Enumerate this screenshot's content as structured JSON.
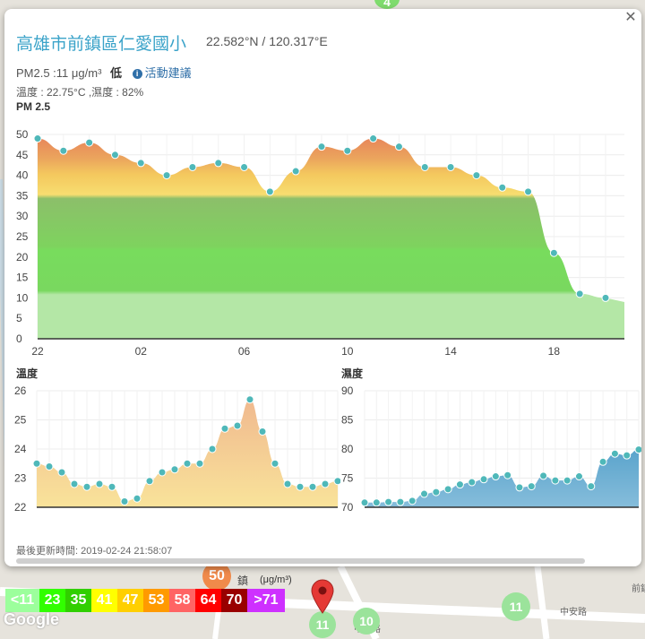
{
  "station": {
    "name": "高雄市前鎮區仁愛國小",
    "coords": "22.582°N / 120.317°E",
    "pm25_text": "PM2.5 :11 μg/m³",
    "level": "低",
    "advice_label": "活動建議",
    "weather_text": "溫度 : 22.75°C ,濕度 : 82%",
    "updated_text": "最後更新時間: 2019-02-24 21:58:07"
  },
  "charts": {
    "pm_title": "PM 2.5",
    "temp_title": "溫度",
    "humidity_title": "濕度"
  },
  "chart_data": [
    {
      "type": "area",
      "title": "PM 2.5",
      "x_tick_labels": [
        "22",
        "02",
        "06",
        "10",
        "14",
        "18"
      ],
      "y_ticks": [
        0,
        5,
        10,
        15,
        20,
        25,
        30,
        35,
        40,
        45,
        50
      ],
      "ylim": [
        0,
        50
      ],
      "grid": true,
      "x_hours": [
        22,
        23,
        24,
        25,
        26,
        27,
        28,
        29,
        30,
        31,
        32,
        33,
        34,
        35,
        36,
        37,
        38,
        39,
        40,
        41,
        42,
        43,
        44
      ],
      "values": [
        49,
        46,
        48,
        45,
        43,
        40,
        42,
        43,
        42,
        36,
        41,
        47,
        46,
        49,
        47,
        42,
        42,
        40,
        37,
        36,
        21,
        11,
        10
      ]
    },
    {
      "type": "area",
      "title": "溫度",
      "y_ticks": [
        22,
        23,
        24,
        25,
        26
      ],
      "ylim": [
        22,
        26
      ],
      "grid": true,
      "values": [
        23.5,
        23.4,
        23.2,
        22.8,
        22.7,
        22.8,
        22.7,
        22.2,
        22.3,
        22.9,
        23.2,
        23.3,
        23.5,
        23.5,
        24.0,
        24.7,
        24.8,
        25.7,
        24.6,
        23.5,
        22.8,
        22.7,
        22.7,
        22.8,
        22.9
      ]
    },
    {
      "type": "area",
      "title": "濕度",
      "y_ticks": [
        70,
        75,
        80,
        85,
        90
      ],
      "ylim": [
        70,
        90
      ],
      "grid": true,
      "values": [
        70.8,
        70.8,
        70.9,
        70.9,
        71.1,
        72.3,
        72.6,
        73.1,
        73.9,
        74.3,
        74.8,
        75.3,
        75.5,
        73.4,
        73.6,
        75.4,
        74.6,
        74.6,
        75.3,
        73.6,
        77.8,
        79.2,
        78.9,
        79.9
      ]
    }
  ],
  "legend": {
    "unit": "(μg/m³)",
    "items": [
      {
        "label": "<11",
        "color": "#9cff9c"
      },
      {
        "label": "23",
        "color": "#31ff00"
      },
      {
        "label": "35",
        "color": "#31cf00"
      },
      {
        "label": "41",
        "color": "#ffff00"
      },
      {
        "label": "47",
        "color": "#ffcf00"
      },
      {
        "label": "53",
        "color": "#ff9a00"
      },
      {
        "label": "58",
        "color": "#ff6464"
      },
      {
        "label": "64",
        "color": "#ff0000"
      },
      {
        "label": "70",
        "color": "#990000"
      },
      {
        "label": ">71",
        "color": "#ce30ff"
      }
    ]
  },
  "map": {
    "markers": [
      "50",
      "11",
      "10",
      "11",
      "4"
    ],
    "google_label": "Google",
    "street_labels": [
      "鎮",
      "中安路",
      "中安路",
      "前鎮三路"
    ]
  }
}
